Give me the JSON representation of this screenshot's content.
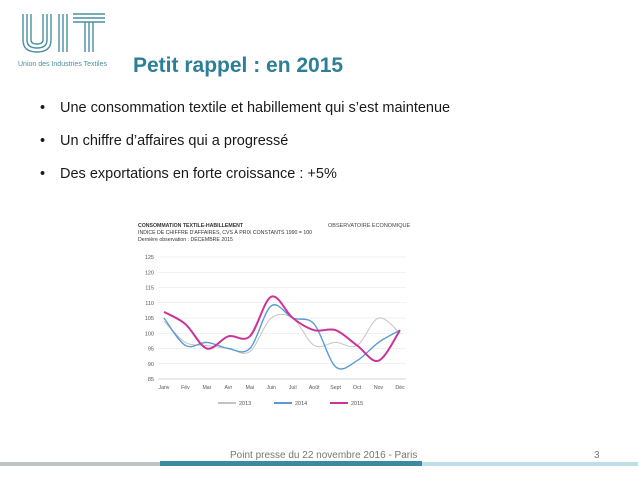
{
  "logo": {
    "letters": "UIT",
    "subtitle": "Union des Industries Textiles",
    "color": "#4a8fa3"
  },
  "title": "Petit rappel : en 2015",
  "bullets": [
    "Une consommation textile et habillement qui s’est maintenue",
    "Un chiffre d’affaires qui a progressé",
    "Des exportations en forte croissance : +5%"
  ],
  "bullet_char": "•",
  "chart_header": {
    "line1": "CONSOMMATION TEXTILE-HABILLEMENT",
    "line2": "INDICE DE CHIFFRE D'AFFAIRES, CVS À PRIX CONSTANTS 1990 = 100",
    "line3": "Dernière observation : DÉCEMBRE 2015",
    "observatoire": "OBSERVATOIRE ECONOMIQUE"
  },
  "chart_data": {
    "type": "line",
    "categories": [
      "Janv",
      "Fév",
      "Mar",
      "Avr",
      "Mai",
      "Juin",
      "Juil",
      "Août",
      "Sept",
      "Oct",
      "Nov",
      "Déc"
    ],
    "ylim": [
      85,
      125
    ],
    "yticks": [
      85,
      90,
      95,
      100,
      105,
      110,
      115,
      120,
      125
    ],
    "grid": true,
    "legend_position": "bottom",
    "series": [
      {
        "name": "2013",
        "color": "#c4c4c4",
        "values": [
          104,
          97,
          96,
          95,
          94,
          105,
          105,
          96,
          97,
          96,
          105,
          100
        ]
      },
      {
        "name": "2014",
        "color": "#5b9bd5",
        "values": [
          105,
          96,
          97,
          95,
          95,
          109,
          105,
          103,
          89,
          91,
          97,
          101
        ]
      },
      {
        "name": "2015",
        "color": "#cc3399",
        "values": [
          107,
          103,
          95,
          99,
          99,
          112,
          105,
          101,
          101,
          96,
          91,
          101
        ]
      }
    ]
  },
  "footer": {
    "text": "Point presse du 22 novembre 2016 - Paris",
    "page": "3",
    "colors": {
      "grey": "#bdc3c7",
      "teal": "#3a8aa0",
      "light": "#bde0e6"
    }
  }
}
